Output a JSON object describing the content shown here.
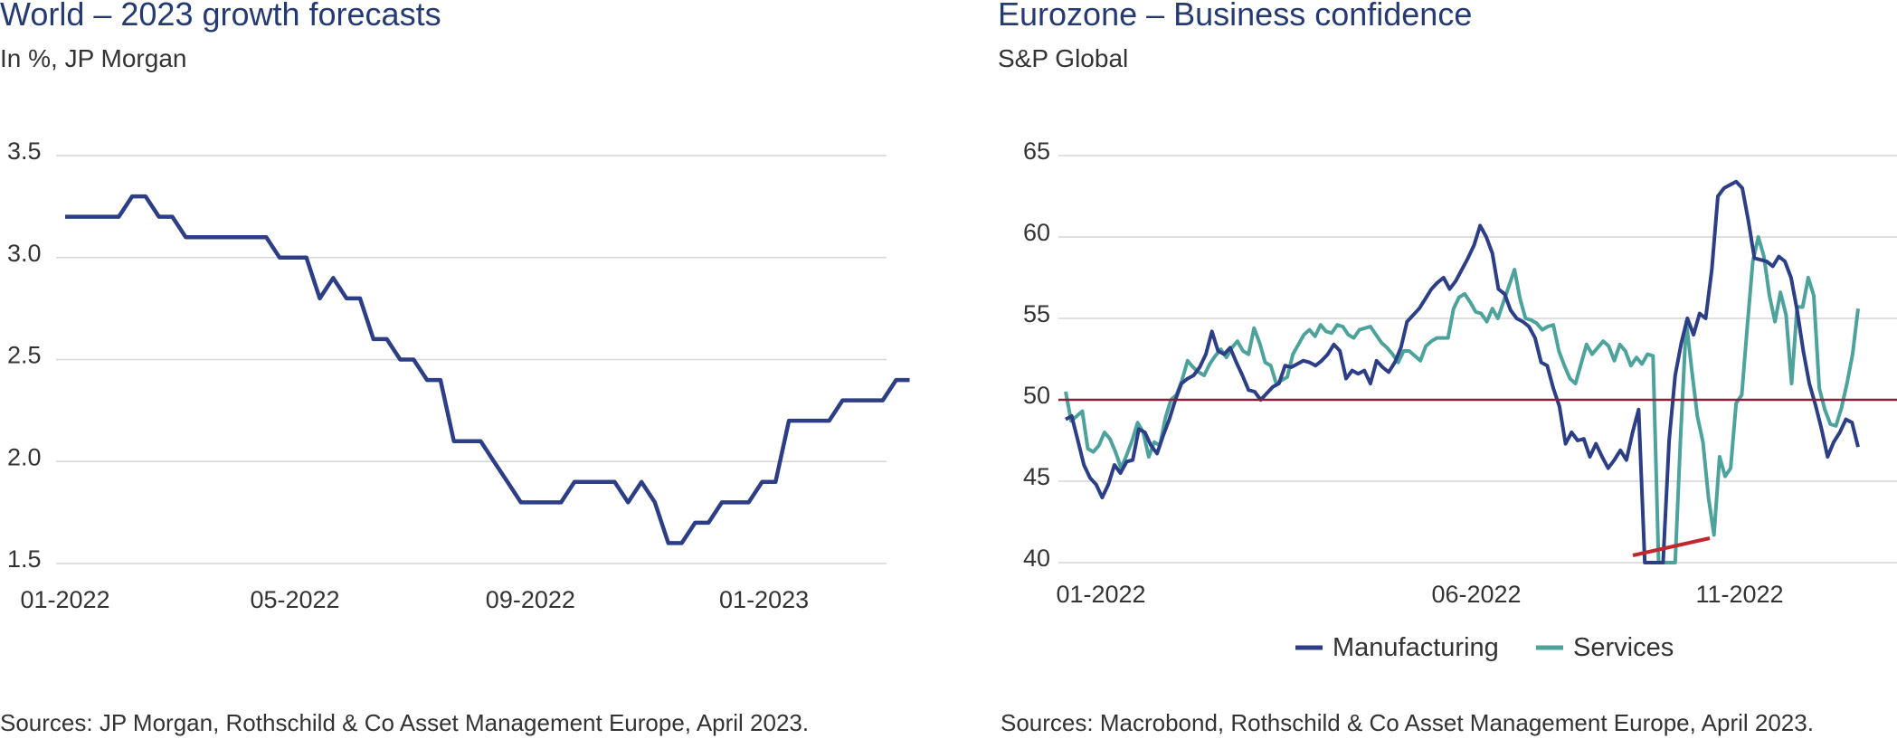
{
  "chart_data": [
    {
      "type": "line",
      "title": "World – 2023 growth forecasts",
      "subtitle": "In %, JP Morgan",
      "source": "Sources: JP Morgan, Rothschild & Co Asset Management Europe, April 2023.",
      "x_ticks": [
        "01-2022",
        "05-2022",
        "09-2022",
        "01-2023"
      ],
      "y_ticks": [
        "3.5",
        "3.0",
        "2.5",
        "2.0",
        "1.5"
      ],
      "ylim": [
        1.5,
        3.5
      ],
      "xlim": [
        "2022-01",
        "2023-04"
      ],
      "grid": true,
      "colors": [
        "#2c3e86"
      ],
      "series": [
        {
          "x": [
            "2022-01-01",
            "2022-01-15",
            "2022-01-29",
            "2022-02-05",
            "2022-02-12",
            "2022-02-19",
            "2022-02-26",
            "2022-03-05",
            "2022-03-12",
            "2022-03-19",
            "2022-03-26",
            "2022-04-02",
            "2022-04-09",
            "2022-04-16",
            "2022-04-23",
            "2022-04-30",
            "2022-05-07",
            "2022-05-14",
            "2022-05-21",
            "2022-05-28",
            "2022-06-04",
            "2022-06-11",
            "2022-06-18",
            "2022-06-25",
            "2022-07-02",
            "2022-07-09",
            "2022-07-16",
            "2022-07-23",
            "2022-07-30",
            "2022-08-06",
            "2022-08-13",
            "2022-08-20",
            "2022-08-27",
            "2022-09-03",
            "2022-09-10",
            "2022-09-17",
            "2022-09-24",
            "2022-10-01",
            "2022-10-08",
            "2022-10-15",
            "2022-10-22",
            "2022-10-29",
            "2022-11-05",
            "2022-11-12",
            "2022-11-19",
            "2022-11-26",
            "2022-12-03",
            "2022-12-10",
            "2022-12-17",
            "2022-12-24",
            "2022-12-31",
            "2023-01-07",
            "2023-01-14",
            "2023-01-21",
            "2023-01-28",
            "2023-02-04",
            "2023-02-11",
            "2023-02-18",
            "2023-02-25",
            "2023-03-04",
            "2023-03-11",
            "2023-03-18"
          ],
          "values": [
            3.2,
            3.2,
            3.2,
            3.3,
            3.3,
            3.2,
            3.2,
            3.1,
            3.1,
            3.1,
            3.1,
            3.1,
            3.1,
            3.1,
            3.0,
            3.0,
            3.0,
            2.8,
            2.9,
            2.8,
            2.8,
            2.6,
            2.6,
            2.5,
            2.5,
            2.4,
            2.4,
            2.1,
            2.1,
            2.1,
            2.0,
            1.9,
            1.8,
            1.8,
            1.8,
            1.8,
            1.9,
            1.9,
            1.9,
            1.9,
            1.8,
            1.9,
            1.8,
            1.6,
            1.6,
            1.7,
            1.7,
            1.8,
            1.8,
            1.8,
            1.9,
            1.9,
            2.2,
            2.2,
            2.2,
            2.2,
            2.3,
            2.3,
            2.3,
            2.3,
            2.4,
            2.4
          ]
        }
      ]
    },
    {
      "type": "line",
      "title": "Eurozone – Business confidence",
      "subtitle": "S&P Global",
      "source": "Sources: Macrobond, Rothschild & Co Asset Management  Europe, April 2023.",
      "x_ticks": [
        "01-2022",
        "06-2022",
        "11-2022"
      ],
      "y_ticks": [
        "65",
        "60",
        "55",
        "50",
        "45",
        "40"
      ],
      "ylim": [
        40,
        65
      ],
      "reference_line": 50,
      "grid": true,
      "legend_position": "bottom",
      "colors": {
        "manufacturing": "#2c3e86",
        "services": "#4da39c",
        "reference": "#8a1e3c",
        "annotation": "#c0282d"
      },
      "series": [
        {
          "name": "Manufacturing",
          "values": [
            48.8,
            49.0,
            47.5,
            46.0,
            45.2,
            44.8,
            44.0,
            44.8,
            46.0,
            45.5,
            46.2,
            46.3,
            48.2,
            48.0,
            47.2,
            46.7,
            47.8,
            48.8,
            50.0,
            51.0,
            51.3,
            51.5,
            52.0,
            52.8,
            54.2,
            53.0,
            52.8,
            53.2,
            52.3,
            51.5,
            50.6,
            50.5,
            50.0,
            50.4,
            50.8,
            51.0,
            52.1,
            52.0,
            52.2,
            52.4,
            52.3,
            52.1,
            52.4,
            52.8,
            53.4,
            53.0,
            51.3,
            51.8,
            51.6,
            51.8,
            51.0,
            52.4,
            52.0,
            51.7,
            52.3,
            53.2,
            54.8,
            55.2,
            55.6,
            56.2,
            56.8,
            57.2,
            57.5,
            56.8,
            57.3,
            58.0,
            58.7,
            59.5,
            60.7,
            60.0,
            59.0,
            56.8,
            56.5,
            55.5,
            55.0,
            54.8,
            54.5,
            53.8,
            52.3,
            52.1,
            50.7,
            49.6,
            47.3,
            48.0,
            47.5,
            47.6,
            46.5,
            47.3,
            46.5,
            45.8,
            46.3,
            46.9,
            46.3,
            48.0,
            49.4,
            40.0,
            40.0,
            40.0,
            40.0,
            47.5,
            51.5,
            53.5,
            55.0,
            54.0,
            55.3,
            55.0,
            58.0,
            62.5,
            63.0,
            63.2,
            63.4,
            63.0,
            61.0,
            58.7,
            58.6,
            58.5,
            58.2,
            58.8,
            58.5,
            57.5,
            55.5,
            53.0,
            51.0,
            49.7,
            48.2,
            46.5,
            47.4,
            48.0,
            48.8,
            48.6,
            47.1
          ]
        },
        {
          "name": "Services",
          "values": [
            50.5,
            48.7,
            49.0,
            49.3,
            47.0,
            46.8,
            47.2,
            48.0,
            47.6,
            46.8,
            45.8,
            46.6,
            47.5,
            48.6,
            48.0,
            46.5,
            47.4,
            47.2,
            48.9,
            50.0,
            50.3,
            51.2,
            52.4,
            52.0,
            51.7,
            51.5,
            52.2,
            52.7,
            53.1,
            52.6,
            53.2,
            53.6,
            53.0,
            52.8,
            54.4,
            53.5,
            52.3,
            52.1,
            51.0,
            51.2,
            51.4,
            52.8,
            53.4,
            54.0,
            54.3,
            53.9,
            54.6,
            54.2,
            54.1,
            54.6,
            54.5,
            54.0,
            53.8,
            54.3,
            54.4,
            54.5,
            54.0,
            53.5,
            53.2,
            52.8,
            52.3,
            53.0,
            53.0,
            52.7,
            52.4,
            53.3,
            53.6,
            53.8,
            53.8,
            53.8,
            55.6,
            56.3,
            56.5,
            56.0,
            55.4,
            55.3,
            54.8,
            55.6,
            55.0,
            56.0,
            57.0,
            58.0,
            56.2,
            55.0,
            54.9,
            54.7,
            54.3,
            54.5,
            54.6,
            53.0,
            52.1,
            51.3,
            51.0,
            52.2,
            53.4,
            52.8,
            53.2,
            53.6,
            53.3,
            52.4,
            53.4,
            53.0,
            52.1,
            52.6,
            52.2,
            52.8,
            52.7,
            40.0,
            40.0,
            40.0,
            40.0,
            48.0,
            54.8,
            51.8,
            49.0,
            47.4,
            44.0,
            41.7,
            46.5,
            45.3,
            45.8,
            49.8,
            50.3,
            54.5,
            58.5,
            60.0,
            58.8,
            56.4,
            54.8,
            56.6,
            55.2,
            51.0,
            55.7,
            55.7,
            57.5,
            56.4,
            50.7,
            49.4,
            48.5,
            48.4,
            49.5,
            51.0,
            52.8,
            55.6
          ]
        }
      ]
    }
  ]
}
